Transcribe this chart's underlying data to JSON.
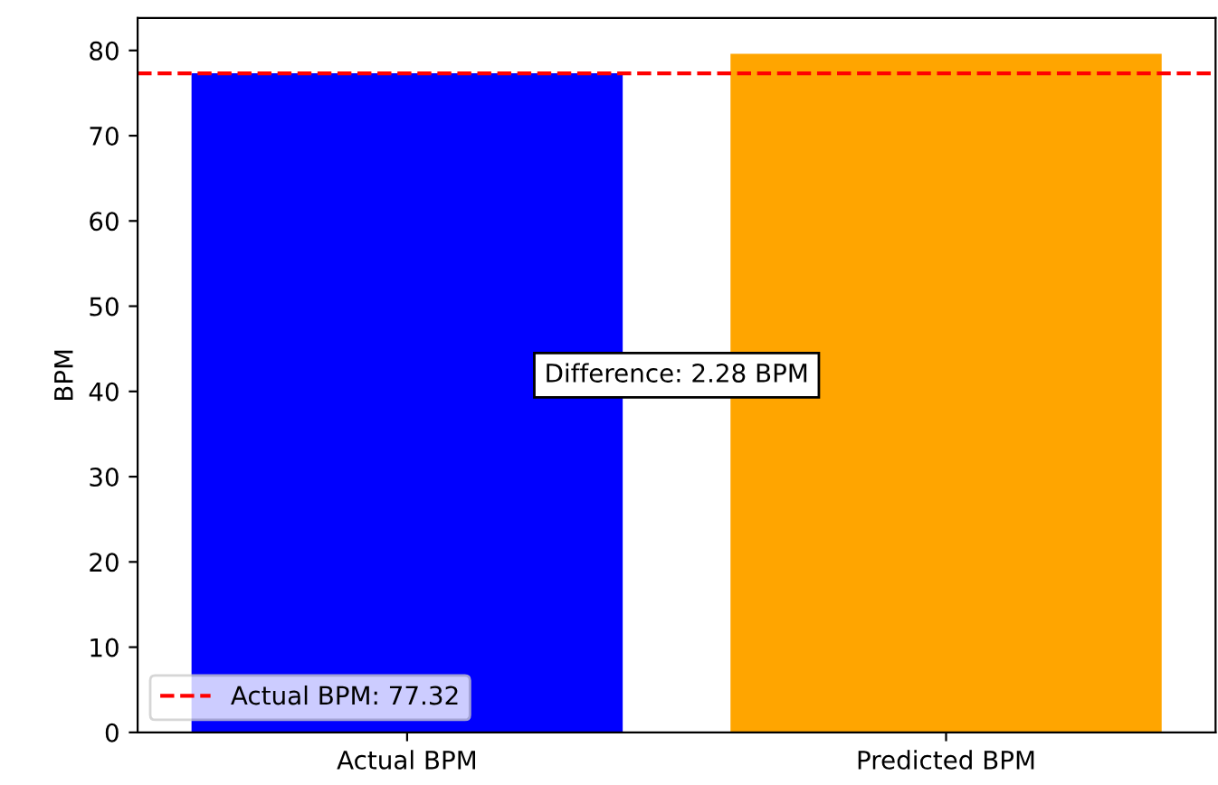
{
  "chart_data": {
    "type": "bar",
    "ylabel": "BPM",
    "categories": [
      "Actual BPM",
      "Predicted BPM"
    ],
    "values": [
      77.32,
      79.6
    ],
    "colors": [
      "#0000ff",
      "#ffa500"
    ],
    "ylim": [
      0,
      83.8
    ],
    "yticks": [
      0,
      10,
      20,
      30,
      40,
      50,
      60,
      70,
      80
    ],
    "ref_lines": [
      {
        "axis": "y",
        "value": 77.32,
        "label": "Actual BPM: 77.32",
        "color": "#ff0000",
        "line_style": "dashed"
      }
    ],
    "annotations": [
      "Difference: 2.28 BPM"
    ],
    "legend": "bottom left",
    "grid": false
  }
}
